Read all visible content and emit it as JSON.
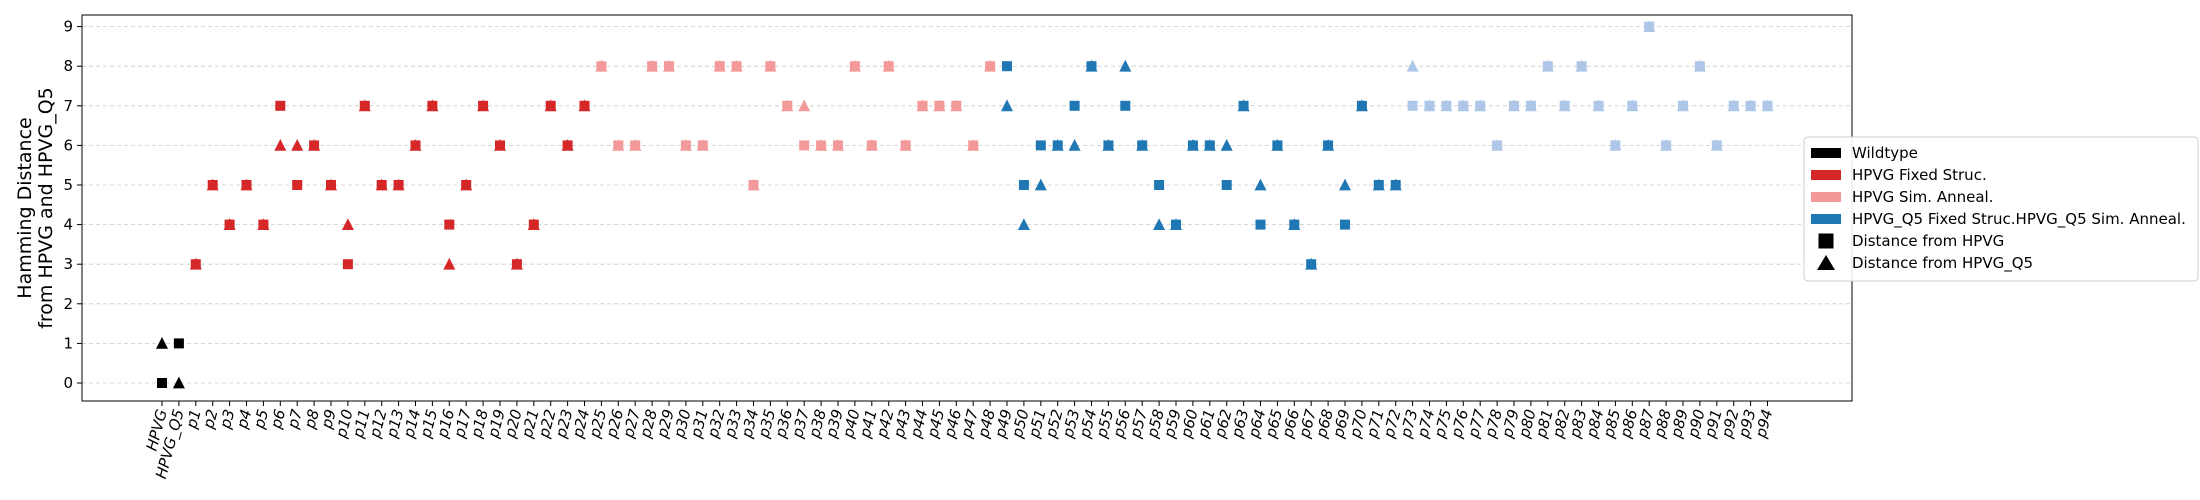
{
  "chart_data": {
    "type": "scatter",
    "ylabel_line1": "Hamming Distance",
    "ylabel_line2": "from HPVG and HPVG_Q5",
    "yticks": [
      0,
      1,
      2,
      3,
      4,
      5,
      6,
      7,
      8,
      9
    ],
    "ylim": [
      -0.45,
      9.45
    ],
    "grid": "y-dashed",
    "legend_position": "right",
    "categories": [
      "HPVG",
      "HPVG_Q5",
      "p1",
      "p2",
      "p3",
      "p4",
      "p5",
      "p6",
      "p7",
      "p8",
      "p9",
      "p10",
      "p11",
      "p12",
      "p13",
      "p14",
      "p15",
      "p16",
      "p17",
      "p18",
      "p19",
      "p20",
      "p21",
      "p22",
      "p23",
      "p24",
      "p25",
      "p26",
      "p27",
      "p28",
      "p29",
      "p30",
      "p31",
      "p32",
      "p33",
      "p34",
      "p35",
      "p36",
      "p37",
      "p38",
      "p39",
      "p40",
      "p41",
      "p42",
      "p43",
      "p44",
      "p45",
      "p46",
      "p47",
      "p48",
      "p49",
      "p50",
      "p51",
      "p52",
      "p53",
      "p54",
      "p55",
      "p56",
      "p57",
      "p58",
      "p59",
      "p60",
      "p61",
      "p62",
      "p63",
      "p64",
      "p65",
      "p66",
      "p67",
      "p68",
      "p69",
      "p70",
      "p71",
      "p72",
      "p73",
      "p74",
      "p75",
      "p76",
      "p77",
      "p78",
      "p79",
      "p80",
      "p81",
      "p82",
      "p83",
      "p84",
      "p85",
      "p86",
      "p87",
      "p88",
      "p89",
      "p90",
      "p91",
      "p92",
      "p93",
      "p94"
    ],
    "groups": [
      {
        "name": "Wildtype",
        "color": "#000000",
        "start": 0,
        "end": 1
      },
      {
        "name": "HPVG Fixed Struc.",
        "color": "#d62728",
        "start": 2,
        "end": 25
      },
      {
        "name": "HPVG Sim. Anneal.",
        "color": "#f4999a",
        "start": 26,
        "end": 49
      },
      {
        "name": "HPVG_Q5 Fixed Struc.",
        "color": "#1f77b4",
        "start": 50,
        "end": 73
      },
      {
        "name": "HPVG_Q5 Sim. Anneal.",
        "color": "#aec7e8",
        "start": 74,
        "end": 95
      }
    ],
    "series": [
      {
        "name": "Distance from HPVG",
        "marker": "square",
        "values": [
          0,
          1,
          3,
          5,
          4,
          5,
          4,
          7,
          5,
          6,
          5,
          3,
          7,
          5,
          5,
          6,
          7,
          4,
          5,
          7,
          6,
          3,
          4,
          7,
          6,
          7,
          8,
          6,
          6,
          8,
          8,
          6,
          6,
          8,
          8,
          5,
          8,
          7,
          6,
          6,
          6,
          8,
          6,
          8,
          6,
          7,
          7,
          7,
          6,
          8,
          8,
          5,
          6,
          6,
          7,
          8,
          6,
          7,
          6,
          5,
          4,
          6,
          6,
          5,
          7,
          4,
          6,
          4,
          3,
          6,
          4,
          7,
          5,
          5,
          7,
          7,
          7,
          7,
          7,
          6,
          7,
          7,
          8,
          7,
          8,
          7,
          6,
          7,
          9,
          6,
          7,
          8,
          6,
          7,
          7,
          7
        ]
      },
      {
        "name": "Distance from HPVG_Q5",
        "marker": "triangle",
        "values": [
          1,
          0,
          3,
          5,
          4,
          5,
          4,
          6,
          6,
          6,
          5,
          4,
          7,
          5,
          5,
          6,
          7,
          3,
          5,
          7,
          6,
          3,
          4,
          7,
          6,
          7,
          8,
          6,
          6,
          8,
          8,
          6,
          6,
          8,
          8,
          5,
          8,
          7,
          7,
          6,
          6,
          8,
          6,
          8,
          6,
          7,
          7,
          7,
          6,
          8,
          7,
          4,
          5,
          6,
          6,
          8,
          6,
          8,
          6,
          4,
          4,
          6,
          6,
          6,
          7,
          5,
          6,
          4,
          3,
          6,
          5,
          7,
          5,
          5,
          8,
          7,
          7,
          7,
          7,
          6,
          7,
          7,
          8,
          7,
          8,
          7,
          6,
          7,
          9,
          6,
          7,
          8,
          6,
          7,
          7,
          7
        ]
      }
    ],
    "legend": [
      {
        "label": "Wildtype",
        "kind": "patch",
        "color": "#000000"
      },
      {
        "label": "HPVG Fixed Struc.",
        "kind": "patch",
        "color": "#d62728"
      },
      {
        "label": "HPVG Sim. Anneal.",
        "kind": "patch",
        "color": "#f4999a"
      },
      {
        "label": "HPVG_Q5 Fixed Struc.HPVG_Q5 Sim. Anneal.",
        "kind": "patch",
        "color": "#1f77b4"
      },
      {
        "label": "Distance from HPVG",
        "kind": "square",
        "color": "#000000"
      },
      {
        "label": "Distance from HPVG_Q5",
        "kind": "triangle",
        "color": "#000000"
      }
    ]
  }
}
